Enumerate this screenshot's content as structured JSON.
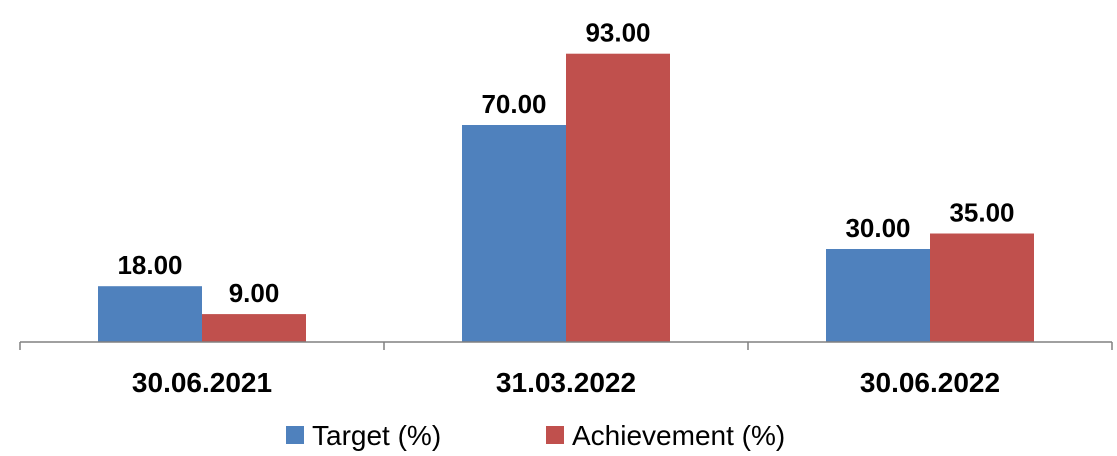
{
  "chart_data": {
    "type": "bar",
    "categories": [
      "30.06.2021",
      "31.03.2022",
      "30.06.2022"
    ],
    "series": [
      {
        "name": "Target (%)",
        "values": [
          18.0,
          70.0,
          30.0
        ],
        "labels": [
          "18.00",
          "70.00",
          "30.00"
        ],
        "color": "#4F81BD"
      },
      {
        "name": "Achievement (%)",
        "values": [
          9.0,
          93.0,
          35.0
        ],
        "labels": [
          "9.00",
          "93.00",
          "35.00"
        ],
        "color": "#C0504D"
      }
    ],
    "ylim": [
      0,
      100
    ],
    "grid": false,
    "legend_position": "bottom"
  }
}
